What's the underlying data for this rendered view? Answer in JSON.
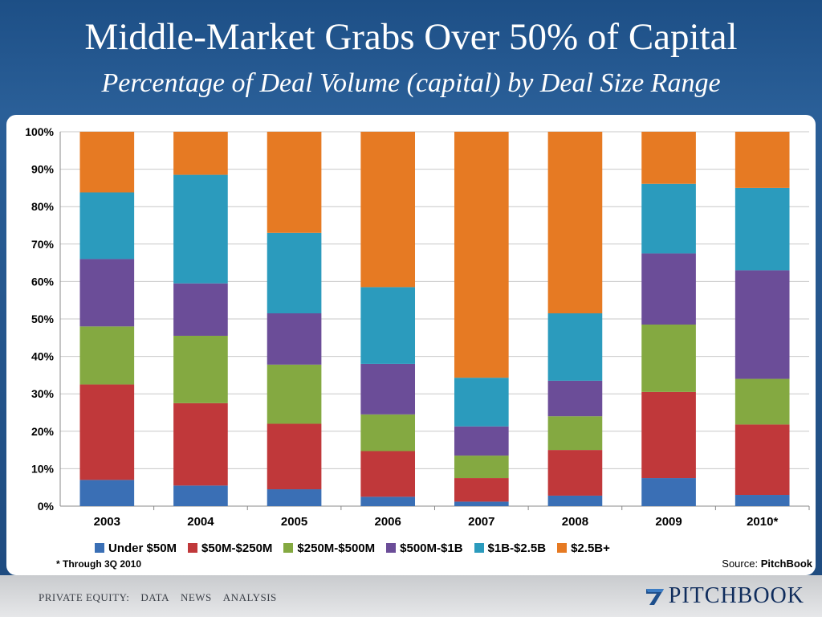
{
  "header": {
    "title": "Middle-Market Grabs Over 50% of Capital",
    "subtitle": "Percentage of Deal Volume (capital) by Deal Size Range"
  },
  "chart_data": {
    "type": "bar",
    "stacked": true,
    "categories": [
      "2003",
      "2004",
      "2005",
      "2006",
      "2007",
      "2008",
      "2009",
      "2010*"
    ],
    "ylim": [
      0,
      100
    ],
    "yticks": [
      "0%",
      "10%",
      "20%",
      "30%",
      "40%",
      "50%",
      "60%",
      "70%",
      "80%",
      "90%",
      "100%"
    ],
    "grid": true,
    "legend_position": "bottom",
    "series": [
      {
        "name": "Under $50M",
        "color": "#3a6fb5",
        "values": [
          7,
          5.5,
          4.5,
          2.5,
          1.2,
          2.8,
          7.5,
          3
        ]
      },
      {
        "name": "$50M-$250M",
        "color": "#c0383a",
        "values": [
          25.5,
          22,
          17.5,
          12.2,
          6.3,
          12.2,
          23,
          18.8
        ]
      },
      {
        "name": "$250M-$500M",
        "color": "#84a941",
        "values": [
          15.5,
          18,
          15.8,
          9.8,
          6,
          9,
          18,
          12.2
        ]
      },
      {
        "name": "$500M-$1B",
        "color": "#6b4d98",
        "values": [
          18,
          14,
          13.7,
          13.5,
          7.8,
          9.5,
          19,
          29
        ]
      },
      {
        "name": "$1B-$2.5B",
        "color": "#2b9bbd",
        "values": [
          17.8,
          29,
          21.5,
          20.5,
          13,
          18,
          18.6,
          22
        ]
      },
      {
        "name": "$2.5B+",
        "color": "#e67a23",
        "values": [
          16.2,
          11.5,
          27,
          41.5,
          65.7,
          48.5,
          13.9,
          15
        ]
      }
    ]
  },
  "footnote": "* Through 3Q 2010",
  "source": {
    "prefix": "Source: ",
    "name": "PitchBook"
  },
  "footer": {
    "nav": [
      "PRIVATE EQUITY:",
      "DATA",
      "NEWS",
      "ANALYSIS"
    ],
    "brand": "PITCHBOOK"
  }
}
